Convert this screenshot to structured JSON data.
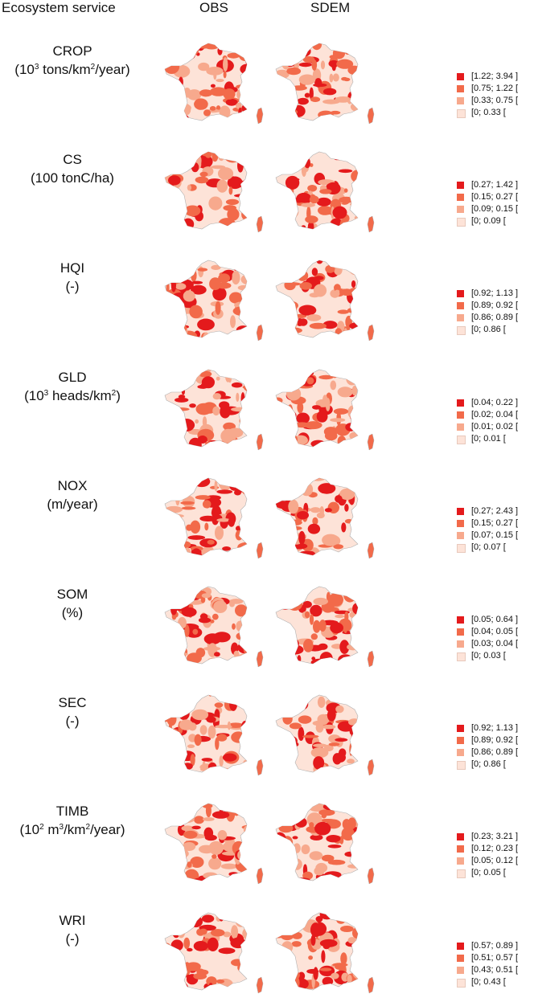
{
  "headers": {
    "ecosystem_service": "Ecosystem service",
    "obs": "OBS",
    "sdem": "SDEM"
  },
  "colors": {
    "class4": "#e41a1c",
    "class3": "#f26a4a",
    "class2": "#f7a98d",
    "class1": "#fde3d8",
    "border": "#b0b0b0"
  },
  "rows": [
    {
      "name": "CROP",
      "unit_html": "(10<sup>3</sup> tons/km<sup>2</sup>/year)",
      "legend": [
        "[1.22; 3.94 ]",
        "[0.75; 1.22 [",
        "[0.33; 0.75 [",
        "[0; 0.33 ["
      ]
    },
    {
      "name": "CS",
      "unit_html": "(100 tonC/ha)",
      "legend": [
        "[0.27; 1.42 ]",
        "[0.15; 0.27 [",
        "[0.09; 0.15 [",
        "[0; 0.09 ["
      ]
    },
    {
      "name": "HQI",
      "unit_html": "(-)",
      "legend": [
        "[0.92; 1.13 ]",
        "[0.89; 0.92 [",
        "[0.86; 0.89 [",
        "[0; 0.86 ["
      ]
    },
    {
      "name": "GLD",
      "unit_html": "(10<sup>3</sup> heads/km<sup>2</sup>)",
      "legend": [
        "[0.04; 0.22 ]",
        "[0.02; 0.04 [",
        "[0.01; 0.02 [",
        "[0; 0.01 ["
      ]
    },
    {
      "name": "NOX",
      "unit_html": "(m/year)",
      "legend": [
        "[0.27; 2.43 ]",
        "[0.15; 0.27 [",
        "[0.07; 0.15 [",
        "[0; 0.07 ["
      ]
    },
    {
      "name": "SOM",
      "unit_html": "(%)",
      "legend": [
        "[0.05; 0.64 ]",
        "[0.04; 0.05 [",
        "[0.03; 0.04 [",
        "[0; 0.03 ["
      ]
    },
    {
      "name": "SEC",
      "unit_html": "(-)",
      "legend": [
        "[0.92; 1.13 ]",
        "[0.89; 0.92 [",
        "[0.86; 0.89 [",
        "[0; 0.86 ["
      ]
    },
    {
      "name": "TIMB",
      "unit_html": "(10<sup>2</sup> m<sup>3</sup>/km<sup>2</sup>/year)",
      "legend": [
        "[0.23; 3.21 ]",
        "[0.12; 0.23 [",
        "[0.05; 0.12 [",
        "[0; 0.05 ["
      ]
    },
    {
      "name": "WRI",
      "unit_html": "(-)",
      "legend": [
        "[0.57; 0.89 ]",
        "[0.51; 0.57 [",
        "[0.43; 0.51 [",
        "[0; 0.43 ["
      ]
    }
  ]
}
